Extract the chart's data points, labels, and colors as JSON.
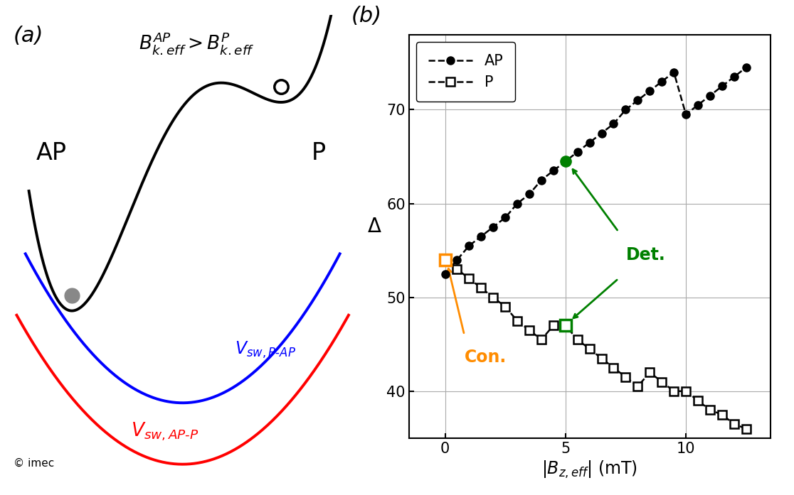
{
  "panel_a_label": "(a)",
  "panel_b_label": "(b)",
  "copyright": "© imec",
  "green_color": "#008000",
  "orange_color": "#FF8C00",
  "ap_x": [
    0,
    0.5,
    1,
    1.5,
    2,
    2.5,
    3,
    3.5,
    4,
    4.5,
    5,
    5.5,
    6,
    6.5,
    7,
    7.5,
    8,
    8.5,
    9,
    9.5,
    10,
    10.5,
    11,
    11.5,
    12,
    12.5
  ],
  "ap_y": [
    52.5,
    54.0,
    55.5,
    56.5,
    57.5,
    58.5,
    60.0,
    61.0,
    62.5,
    63.5,
    64.5,
    65.5,
    66.5,
    67.5,
    68.5,
    70.0,
    71.0,
    72.0,
    73.0,
    74.0,
    69.5,
    70.5,
    71.5,
    72.5,
    73.5,
    74.5
  ],
  "p_x": [
    0,
    0.5,
    1,
    1.5,
    2,
    2.5,
    3,
    3.5,
    4,
    4.5,
    5,
    5.5,
    6,
    6.5,
    7,
    7.5,
    8,
    8.5,
    9,
    9.5,
    10,
    10.5,
    11,
    11.5,
    12,
    12.5
  ],
  "p_y": [
    54.0,
    53.0,
    52.0,
    51.0,
    50.0,
    49.0,
    47.5,
    46.5,
    45.5,
    47.0,
    47.0,
    45.5,
    44.5,
    43.5,
    42.5,
    41.5,
    40.5,
    42.0,
    41.0,
    40.0,
    40.0,
    39.0,
    38.0,
    37.5,
    36.5,
    36.0
  ],
  "det_x": 5,
  "det_ap_y": 64.5,
  "det_p_y": 47.0,
  "con_p_y": 54.0,
  "xlabel": "$|B_{z,eff}|$ (mT)",
  "ylabel": "$\\Delta$",
  "xlim": [
    -1.5,
    13.5
  ],
  "ylim": [
    35,
    78
  ],
  "yticks": [
    40,
    50,
    60,
    70
  ],
  "xticks": [
    0,
    5,
    10
  ]
}
